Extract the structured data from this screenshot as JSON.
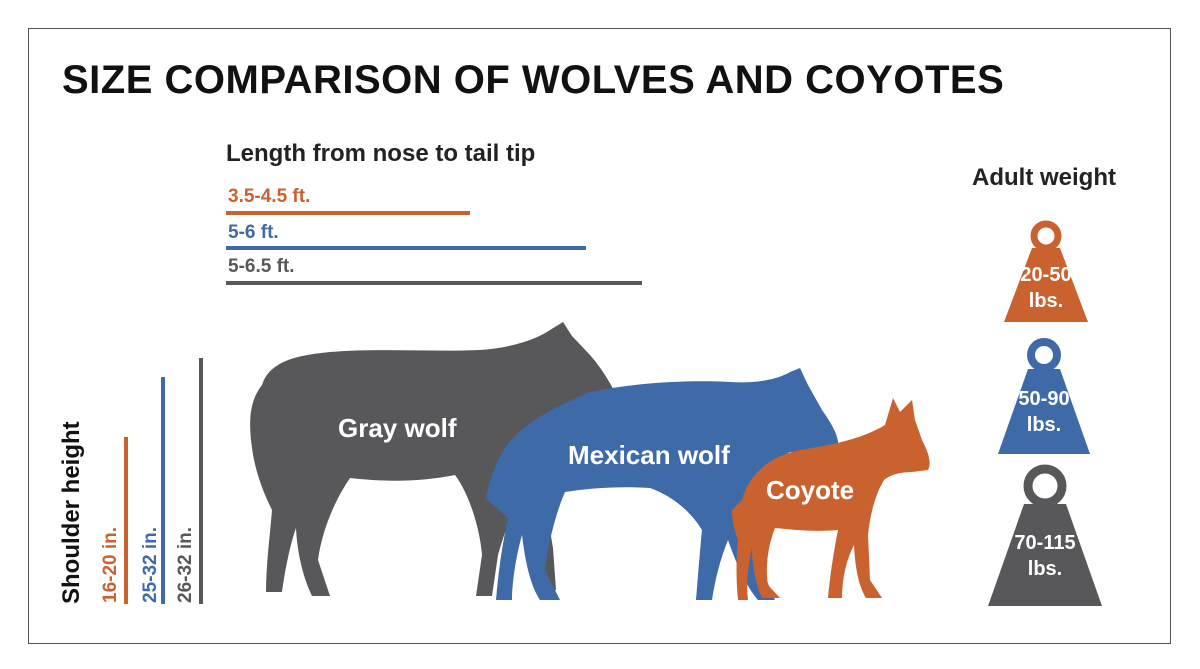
{
  "title": "SIZE COMPARISON OF WOLVES AND COYOTES",
  "colors": {
    "coyote": "#c9622f",
    "mexican_wolf": "#3f6aa8",
    "gray_wolf": "#58585a"
  },
  "length": {
    "heading": "Length from nose to tail tip",
    "items": [
      {
        "label": "3.5-4.5 ft.",
        "animal": "coyote"
      },
      {
        "label": "5-6 ft.",
        "animal": "mexican_wolf"
      },
      {
        "label": "5-6.5 ft.",
        "animal": "gray_wolf"
      }
    ]
  },
  "shoulder": {
    "heading": "Shoulder height",
    "items": [
      {
        "label": "16-20 in.",
        "animal": "coyote"
      },
      {
        "label": "25-32 in.",
        "animal": "mexican_wolf"
      },
      {
        "label": "26-32 in.",
        "animal": "gray_wolf"
      }
    ]
  },
  "animals": {
    "gray_wolf": "Gray wolf",
    "mexican_wolf": "Mexican wolf",
    "coyote": "Coyote"
  },
  "weight": {
    "heading": "Adult weight",
    "items": [
      {
        "line1": "20-50",
        "line2": "lbs.",
        "animal": "coyote"
      },
      {
        "line1": "50-90",
        "line2": "lbs.",
        "animal": "mexican_wolf"
      },
      {
        "line1": "70-115",
        "line2": "lbs.",
        "animal": "gray_wolf"
      }
    ]
  }
}
